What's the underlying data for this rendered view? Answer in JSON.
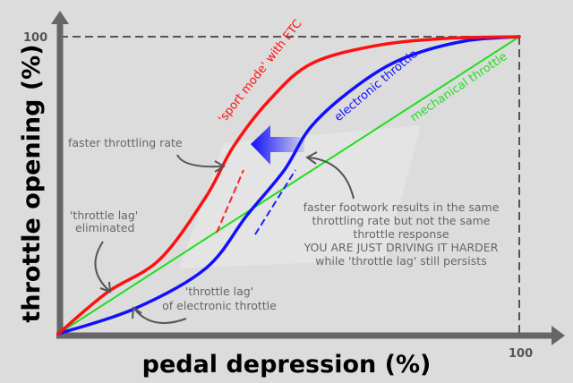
{
  "chart_data": {
    "type": "line",
    "title": "",
    "xlabel": "pedal depression (%)",
    "ylabel": "throttle opening (%)",
    "xlim": [
      0,
      100
    ],
    "ylim": [
      0,
      100
    ],
    "x_tick_labels": [
      "100"
    ],
    "y_tick_labels": [
      "100"
    ],
    "grid": false,
    "series": [
      {
        "name": "'sport mode' with ETC",
        "color": "#ff1010",
        "x": [
          0,
          10.7,
          22,
          32,
          38,
          46,
          55,
          69,
          84,
          100
        ],
        "y": [
          0,
          14,
          25,
          46,
          63,
          79,
          91,
          97,
          99.4,
          100
        ]
      },
      {
        "name": "electronic throttle",
        "color": "#1010ff",
        "x": [
          0,
          16.5,
          32,
          41,
          49,
          55,
          65,
          75,
          88,
          100
        ],
        "y": [
          0,
          8.4,
          22,
          40,
          55,
          70,
          83.7,
          92.8,
          98.5,
          100
        ]
      },
      {
        "name": "mechanical throttle",
        "color": "#22dd22",
        "x": [
          0,
          100
        ],
        "y": [
          0,
          100
        ]
      }
    ],
    "annotations": {
      "faster_rate": "faster throttling rate",
      "lag_eliminated": [
        "'throttle lag'",
        "eliminated"
      ],
      "lag_electronic": [
        "'throttle lag'",
        "of electronic throttle"
      ],
      "footwork": [
        "faster footwork results in the same",
        "throttling rate but not the same",
        "throttle response",
        "YOU ARE JUST DRIVING IT HARDER",
        "while 'throttle lag' still persists"
      ]
    }
  }
}
